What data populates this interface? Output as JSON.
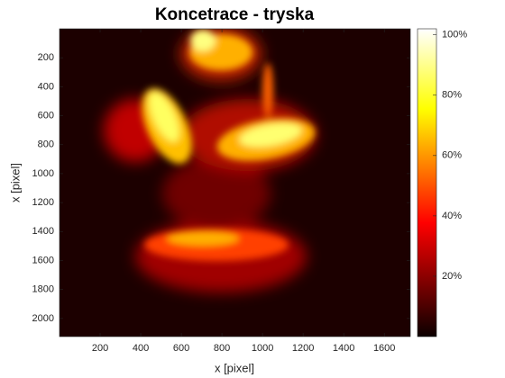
{
  "chart_data": {
    "type": "heatmap",
    "title": "Koncetrace - tryska",
    "x_label": "x [pixel]",
    "y_label": "x [pixel]",
    "xlim": [
      0,
      1728
    ],
    "xticks": [
      200,
      400,
      600,
      800,
      1000,
      1200,
      1400,
      1600
    ],
    "ylim": [
      0,
      2125
    ],
    "yticks": [
      200,
      400,
      600,
      800,
      1000,
      1200,
      1400,
      1600,
      1800,
      2000
    ],
    "y_reversed": true,
    "colormap": "hot",
    "colorbar": {
      "lim": [
        0,
        102
      ],
      "ticks": [
        {
          "value": 20,
          "label": "20%"
        },
        {
          "value": 40,
          "label": "40%"
        },
        {
          "value": 60,
          "label": "60%"
        },
        {
          "value": 80,
          "label": "80%"
        },
        {
          "value": 100,
          "label": "100%"
        }
      ]
    }
  }
}
